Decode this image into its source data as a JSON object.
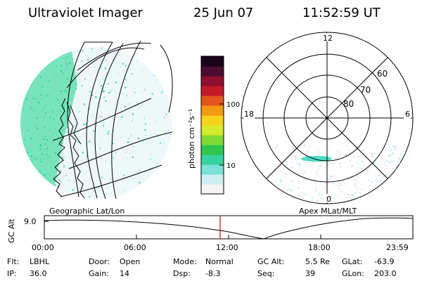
{
  "header": {
    "instrument": "Ultraviolet Imager",
    "date": "25 Jun 07",
    "time": "11:52:59 UT"
  },
  "colorbar": {
    "unit_label": "photon cm⁻²s⁻¹",
    "ticks": [
      "100",
      "10"
    ],
    "colors": [
      "#f4f4f4",
      "#cdeef0",
      "#7be2d8",
      "#35d39f",
      "#2fc64c",
      "#7fd935",
      "#d6e92c",
      "#f6d21a",
      "#f39b12",
      "#e4551b",
      "#c41b29",
      "#8d1030",
      "#4a0c2f",
      "#1a0418"
    ]
  },
  "geo_panel": {
    "label": "Geographic Lat/Lon",
    "fill_color": "#19d48a"
  },
  "apex_panel": {
    "label": "Apex MLat/MLT",
    "mlt_labels": {
      "top": "12",
      "left": "18",
      "right": "6",
      "bottom": "0"
    },
    "lat_labels": [
      "60",
      "70",
      "80"
    ],
    "highlight_color": "#2fd6c0"
  },
  "altitude_plot": {
    "ylabel": "GC Alt",
    "y_tick": "9.0",
    "x_ticks": [
      "00:00",
      "06:00",
      "12:00",
      "18:00",
      "23:59"
    ],
    "current_time_marker": "12:00",
    "marker_color": "#e00000"
  },
  "status": {
    "rows": [
      [
        {
          "key": "Flt:",
          "value": "LBHL"
        },
        {
          "key": "Door:",
          "value": "Open"
        },
        {
          "key": "Mode:",
          "value": "Normal"
        },
        {
          "key": "GC Alt:",
          "value": "5.5 Re"
        },
        {
          "key": "GLat:",
          "value": "-63.9"
        }
      ],
      [
        {
          "key": "IP:",
          "value": "36.0"
        },
        {
          "key": "Gain:",
          "value": "14"
        },
        {
          "key": "Dsp:",
          "value": "-8.3"
        },
        {
          "key": "Seq:",
          "value": "39"
        },
        {
          "key": "GLon:",
          "value": "203.0"
        }
      ]
    ]
  }
}
